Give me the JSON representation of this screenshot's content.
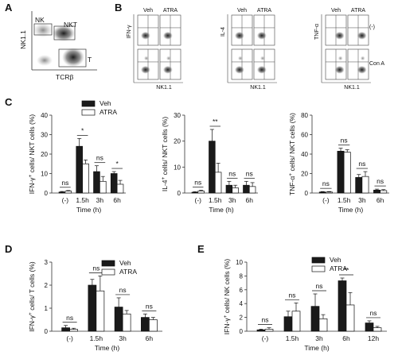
{
  "panels": {
    "A": "A",
    "B": "B",
    "C": "C",
    "D": "D",
    "E": "E"
  },
  "panel_a": {
    "gates": [
      "NK",
      "NKT",
      "T"
    ],
    "ylabel": "NK1.1",
    "xlabel": "TCRβ"
  },
  "panel_b": {
    "groups": [
      {
        "ylabel": "IFN-γ",
        "xlabel": "NK1.1",
        "cols": [
          "Veh",
          "ATRA"
        ]
      },
      {
        "ylabel": "IL-4",
        "xlabel": "NK1.1",
        "cols": [
          "Veh",
          "ATRA"
        ]
      },
      {
        "ylabel": "TNF-α",
        "xlabel": "NK1.1",
        "cols": [
          "Veh",
          "ATRA"
        ]
      }
    ],
    "row_labels": [
      "(-)",
      "Con A"
    ]
  },
  "legend": {
    "veh": "Veh",
    "atra": "ATRA"
  },
  "colors": {
    "veh": "#1a1a1a",
    "atra": "#ffffff",
    "axis": "#333333"
  },
  "chart_data": [
    {
      "id": "C1",
      "type": "bar",
      "ylabel_pre": "IFN-γ",
      "ylabel_post": "cells/ NKT cells (%)",
      "xlabel": "Time (h)",
      "categories": [
        "(-)",
        "1.5h",
        "3h",
        "6h"
      ],
      "ylim": [
        0,
        40
      ],
      "yticks": [
        0,
        10,
        20,
        30,
        40
      ],
      "series": [
        {
          "name": "Veh",
          "values": [
            0.5,
            24,
            11,
            10
          ],
          "err": [
            0.3,
            4,
            3,
            1
          ]
        },
        {
          "name": "ATRA",
          "values": [
            1,
            15,
            6,
            4.5
          ],
          "err": [
            0.3,
            2,
            2.5,
            2
          ]
        }
      ],
      "annotations": [
        "ns",
        "*",
        "ns",
        "*"
      ],
      "legend": true
    },
    {
      "id": "C2",
      "type": "bar",
      "ylabel_pre": "IL-4",
      "ylabel_post": "cells/ NKT cells (%)",
      "xlabel": "Time (h)",
      "categories": [
        "(-)",
        "1.5h",
        "3h",
        "6h"
      ],
      "ylim": [
        0,
        30
      ],
      "yticks": [
        0,
        10,
        20,
        30
      ],
      "series": [
        {
          "name": "Veh",
          "values": [
            0.3,
            20,
            3,
            3
          ],
          "err": [
            0.2,
            4.5,
            1.5,
            1.5
          ]
        },
        {
          "name": "ATRA",
          "values": [
            0.8,
            8,
            2,
            2.5
          ],
          "err": [
            0.3,
            3.5,
            1,
            1.5
          ]
        }
      ],
      "annotations": [
        "ns",
        "**",
        "ns",
        "ns"
      ],
      "legend": false
    },
    {
      "id": "C3",
      "type": "bar",
      "ylabel_pre": "TNF-α",
      "ylabel_post": "cells/ NKT cells (%)",
      "xlabel": "Time (h)",
      "categories": [
        "(-)",
        "1.5h",
        "3h",
        "6h"
      ],
      "ylim": [
        0,
        80
      ],
      "yticks": [
        0,
        20,
        40,
        60,
        80
      ],
      "series": [
        {
          "name": "Veh",
          "values": [
            1,
            43,
            16,
            3
          ],
          "err": [
            0.5,
            3,
            3,
            1
          ]
        },
        {
          "name": "ATRA",
          "values": [
            1,
            42,
            17,
            2.5
          ],
          "err": [
            0.5,
            2.5,
            5,
            1
          ]
        }
      ],
      "annotations": [
        "ns",
        "ns",
        "ns",
        "ns"
      ],
      "legend": false
    },
    {
      "id": "D",
      "type": "bar",
      "ylabel_pre": "IFN-γ",
      "ylabel_post": "cells/ T cells (%)",
      "xlabel": "Time (h)",
      "categories": [
        "(-)",
        "1.5h",
        "3h",
        "6h"
      ],
      "ylim": [
        0,
        3
      ],
      "yticks": [
        0,
        1,
        2,
        3
      ],
      "series": [
        {
          "name": "Veh",
          "values": [
            0.15,
            2.0,
            1.05,
            0.6
          ],
          "err": [
            0.1,
            0.25,
            0.4,
            0.15
          ]
        },
        {
          "name": "ATRA",
          "values": [
            0.08,
            1.75,
            0.75,
            0.5
          ],
          "err": [
            0.05,
            0.65,
            0.15,
            0.1
          ]
        }
      ],
      "annotations": [
        "ns",
        "ns",
        "ns",
        "ns"
      ],
      "legend": true
    },
    {
      "id": "E",
      "type": "bar",
      "ylabel_pre": "IFN-γ",
      "ylabel_post": "cells/ NK cells (%)",
      "xlabel": "Time (h)",
      "categories": [
        "(-)",
        "1.5h",
        "3h",
        "6h",
        "12h"
      ],
      "ylim": [
        0,
        10
      ],
      "yticks": [
        0,
        2,
        4,
        6,
        8,
        10
      ],
      "series": [
        {
          "name": "Veh",
          "values": [
            0.2,
            2.1,
            3.6,
            7.3,
            1.2
          ],
          "err": [
            0.1,
            0.8,
            1.8,
            0.4,
            0.3
          ]
        },
        {
          "name": "ATRA",
          "values": [
            0.3,
            2.9,
            1.8,
            3.8,
            0.5
          ],
          "err": [
            0.2,
            1.2,
            0.6,
            1.8,
            0.2
          ]
        }
      ],
      "annotations": [
        "ns",
        "ns",
        "ns",
        "**",
        "ns"
      ],
      "legend": true
    }
  ]
}
